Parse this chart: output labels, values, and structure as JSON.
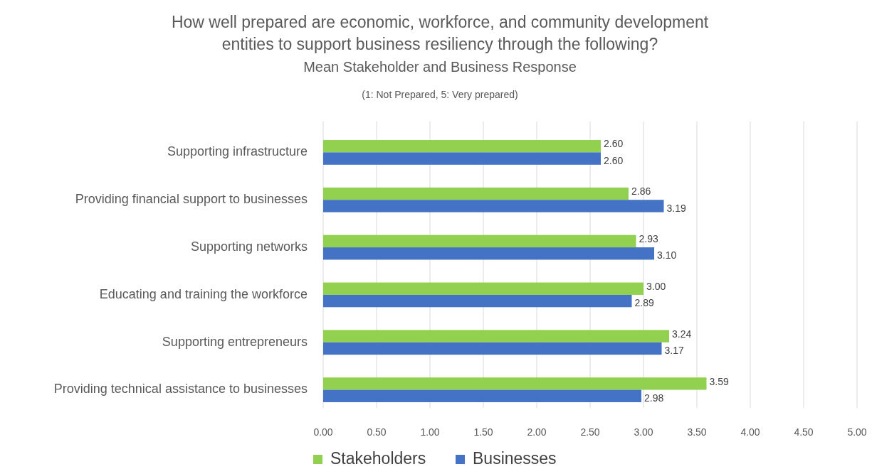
{
  "chart_data": {
    "type": "bar",
    "orientation": "horizontal",
    "title": "How well prepared are economic, workforce, and community development\nentities to support business resiliency through the following?",
    "subtitle": "Mean Stakeholder and Business Response",
    "annotations": [
      "(1: Not Prepared, 5: Very prepared)"
    ],
    "categories": [
      "Supporting infrastructure",
      "Providing financial support to businesses",
      "Supporting networks",
      "Educating and training the workforce",
      "Supporting entrepreneurs",
      "Providing technical assistance to businesses"
    ],
    "series": [
      {
        "name": "Stakeholders",
        "color": "#92d050",
        "values": [
          2.6,
          2.86,
          2.93,
          3.0,
          3.24,
          3.59
        ],
        "value_labels": [
          "2.60",
          "2.86",
          "2.93",
          "3.00",
          "3.24",
          "3.59"
        ]
      },
      {
        "name": "Businesses",
        "color": "#4472c4",
        "values": [
          2.6,
          3.19,
          3.1,
          2.89,
          3.17,
          2.98
        ],
        "value_labels": [
          "2.60",
          "3.19",
          "3.10",
          "2.89",
          "3.17",
          "2.98"
        ]
      }
    ],
    "xlim": [
      0,
      5
    ],
    "xticks": [
      {
        "value": 0,
        "label": "0.00"
      },
      {
        "value": 0.5,
        "label": "0.50"
      },
      {
        "value": 1,
        "label": "1.00"
      },
      {
        "value": 1.5,
        "label": "1.50"
      },
      {
        "value": 2,
        "label": "2.00"
      },
      {
        "value": 2.5,
        "label": "2.50"
      },
      {
        "value": 3,
        "label": "3.00"
      },
      {
        "value": 3.5,
        "label": "3.50"
      },
      {
        "value": 4,
        "label": "4.00"
      },
      {
        "value": 4.5,
        "label": "4.50"
      },
      {
        "value": 5,
        "label": "5.00"
      }
    ],
    "grid": "x",
    "legend": "bottom"
  }
}
